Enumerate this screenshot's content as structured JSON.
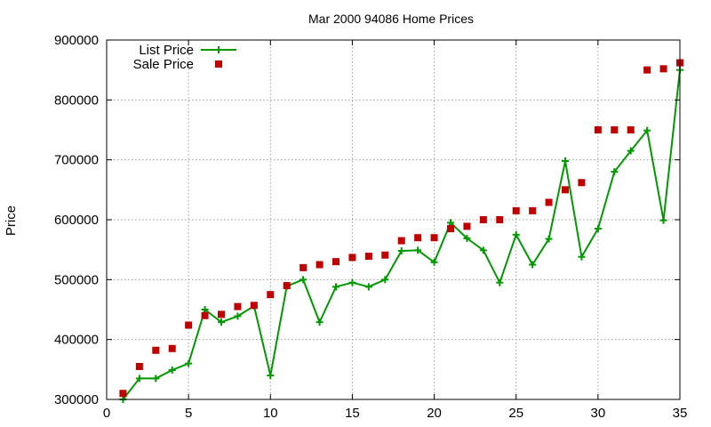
{
  "chart_data": {
    "type": "line",
    "title": "Mar 2000 94086 Home Prices",
    "xlabel": "",
    "ylabel": "Price",
    "xlim": [
      0,
      35
    ],
    "ylim": [
      300000,
      900000
    ],
    "xticks": [
      0,
      5,
      10,
      15,
      20,
      25,
      30,
      35
    ],
    "yticks": [
      300000,
      400000,
      500000,
      600000,
      700000,
      800000,
      900000
    ],
    "grid": true,
    "legend_position": "top-left",
    "series": [
      {
        "name": "List Price",
        "style": "line-points",
        "marker": "plus",
        "color": "#009900",
        "points": [
          [
            1,
            300000
          ],
          [
            2,
            335000
          ],
          [
            3,
            335000
          ],
          [
            4,
            349000
          ],
          [
            5,
            360000
          ],
          [
            6,
            450000
          ],
          [
            7,
            429000
          ],
          [
            8,
            439000
          ],
          [
            9,
            456000
          ],
          [
            10,
            340000
          ],
          [
            11,
            489000
          ],
          [
            12,
            500000
          ],
          [
            13,
            429000
          ],
          [
            14,
            488000
          ],
          [
            15,
            495000
          ],
          [
            16,
            488000
          ],
          [
            17,
            500000
          ],
          [
            18,
            548000
          ],
          [
            19,
            549000
          ],
          [
            20,
            529000
          ],
          [
            21,
            595000
          ],
          [
            22,
            569000
          ],
          [
            23,
            549000
          ],
          [
            24,
            495000
          ],
          [
            25,
            575000
          ],
          [
            26,
            525000
          ],
          [
            27,
            568000
          ],
          [
            28,
            698000
          ],
          [
            29,
            538000
          ],
          [
            30,
            585000
          ],
          [
            31,
            680000
          ],
          [
            32,
            715000
          ],
          [
            33,
            749000
          ],
          [
            34,
            599000
          ],
          [
            35,
            850000
          ]
        ]
      },
      {
        "name": "Sale Price",
        "style": "points",
        "marker": "square",
        "color": "#c00000",
        "points": [
          [
            1,
            310000
          ],
          [
            2,
            355000
          ],
          [
            3,
            382000
          ],
          [
            4,
            385000
          ],
          [
            5,
            424000
          ],
          [
            6,
            440000
          ],
          [
            7,
            442000
          ],
          [
            8,
            455000
          ],
          [
            9,
            457000
          ],
          [
            10,
            475000
          ],
          [
            11,
            490000
          ],
          [
            12,
            520000
          ],
          [
            13,
            525000
          ],
          [
            14,
            530000
          ],
          [
            15,
            537000
          ],
          [
            16,
            539000
          ],
          [
            17,
            541000
          ],
          [
            18,
            565000
          ],
          [
            19,
            570000
          ],
          [
            20,
            570000
          ],
          [
            21,
            585000
          ],
          [
            22,
            589000
          ],
          [
            23,
            600000
          ],
          [
            24,
            600000
          ],
          [
            25,
            615000
          ],
          [
            26,
            615000
          ],
          [
            27,
            629000
          ],
          [
            28,
            650000
          ],
          [
            29,
            662000
          ],
          [
            30,
            750000
          ],
          [
            31,
            750000
          ],
          [
            32,
            750000
          ],
          [
            33,
            850000
          ],
          [
            34,
            852000
          ],
          [
            35,
            862000
          ]
        ]
      }
    ]
  }
}
